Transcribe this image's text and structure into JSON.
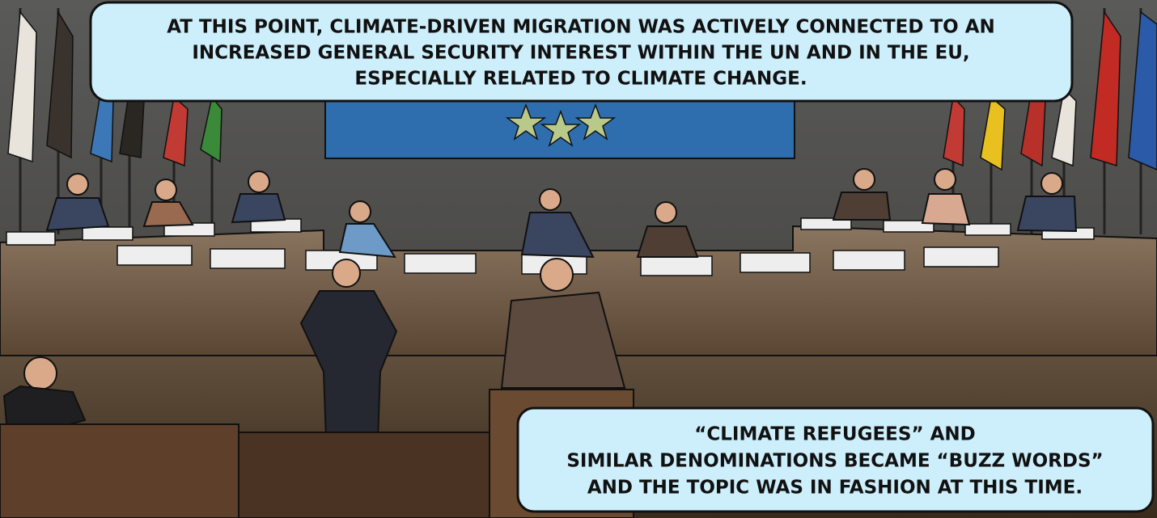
{
  "captions": [
    {
      "lines": [
        "AT THIS POINT, CLIMATE-DRIVEN MIGRATION WAS ACTIVELY CONNECTED TO AN",
        "INCREASED GENERAL SECURITY INTEREST WITHIN THE UN AND IN THE EU,",
        "ESPECIALLY RELATED TO CLIMATE CHANGE."
      ]
    },
    {
      "lines": [
        "“CLIMATE REFUGEES” AND",
        "SIMILAR DENOMINATIONS BECAME “BUZZ WORDS”",
        "AND THE TOPIC WAS IN FASHION AT THIS TIME."
      ]
    }
  ]
}
